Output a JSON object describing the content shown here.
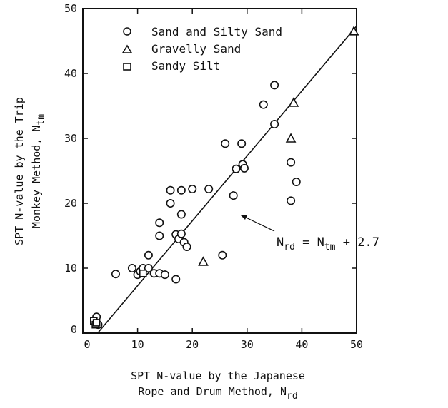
{
  "chart_data": {
    "type": "scatter",
    "xlim": [
      0,
      50
    ],
    "ylim": [
      0,
      50
    ],
    "x_ticks": [
      "0",
      "10",
      "20",
      "30",
      "40",
      "50"
    ],
    "y_ticks": [
      "0",
      "10",
      "20",
      "30",
      "40",
      "50"
    ],
    "xlabel_line1": "SPT N-value by the Japanese",
    "xlabel_line2_main": "Rope and Drum Method, N",
    "xlabel_line2_sub": "rd",
    "ylabel_line1": "SPT N-value by the Trip",
    "ylabel_line2_main": "Monkey Method, N",
    "ylabel_line2_sub": "tm",
    "grid": false,
    "legend_position": "top-left",
    "series": [
      {
        "name": "Sand and Silty Sand",
        "marker": "circle",
        "points": [
          [
            2.5,
            2.5
          ],
          [
            2.8,
            1.3
          ],
          [
            6,
            9.1
          ],
          [
            9,
            10
          ],
          [
            10,
            9
          ],
          [
            10.5,
            9.5
          ],
          [
            11,
            10
          ],
          [
            12,
            12
          ],
          [
            12,
            10
          ],
          [
            13,
            9.2
          ],
          [
            14,
            9.2
          ],
          [
            14,
            17
          ],
          [
            14,
            15
          ],
          [
            15,
            9
          ],
          [
            16,
            22
          ],
          [
            16,
            20
          ],
          [
            17,
            15.2
          ],
          [
            17,
            8.3
          ],
          [
            17.5,
            14.5
          ],
          [
            18,
            15.3
          ],
          [
            18,
            22
          ],
          [
            18,
            18.3
          ],
          [
            18.5,
            14
          ],
          [
            19,
            13.3
          ],
          [
            20,
            22.2
          ],
          [
            23,
            22.2
          ],
          [
            25.5,
            12
          ],
          [
            26,
            29.2
          ],
          [
            27.5,
            21.2
          ],
          [
            28,
            25.3
          ],
          [
            29,
            29.2
          ],
          [
            29.2,
            26
          ],
          [
            29.5,
            25.4
          ],
          [
            33,
            35.2
          ],
          [
            35,
            32.2
          ],
          [
            35,
            38.2
          ],
          [
            38,
            26.3
          ],
          [
            38,
            20.4
          ],
          [
            39,
            23.3
          ]
        ]
      },
      {
        "name": "Gravelly Sand",
        "marker": "triangle",
        "points": [
          [
            22,
            11
          ],
          [
            38,
            30
          ],
          [
            38.5,
            35.5
          ],
          [
            49.5,
            46.5
          ]
        ]
      },
      {
        "name": "Sandy Silt",
        "marker": "square",
        "points": [
          [
            2,
            1.9
          ],
          [
            2.3,
            1.3
          ],
          [
            2.5,
            1.6
          ],
          [
            11,
            9.2
          ]
        ]
      }
    ],
    "fit_line": {
      "label_main": "N",
      "label_sub1": "rd",
      "label_eq": " = N",
      "label_sub2": "tm",
      "label_tail": " + 2.7",
      "points": [
        [
          2.7,
          0
        ],
        [
          50,
          47.3
        ]
      ]
    }
  }
}
